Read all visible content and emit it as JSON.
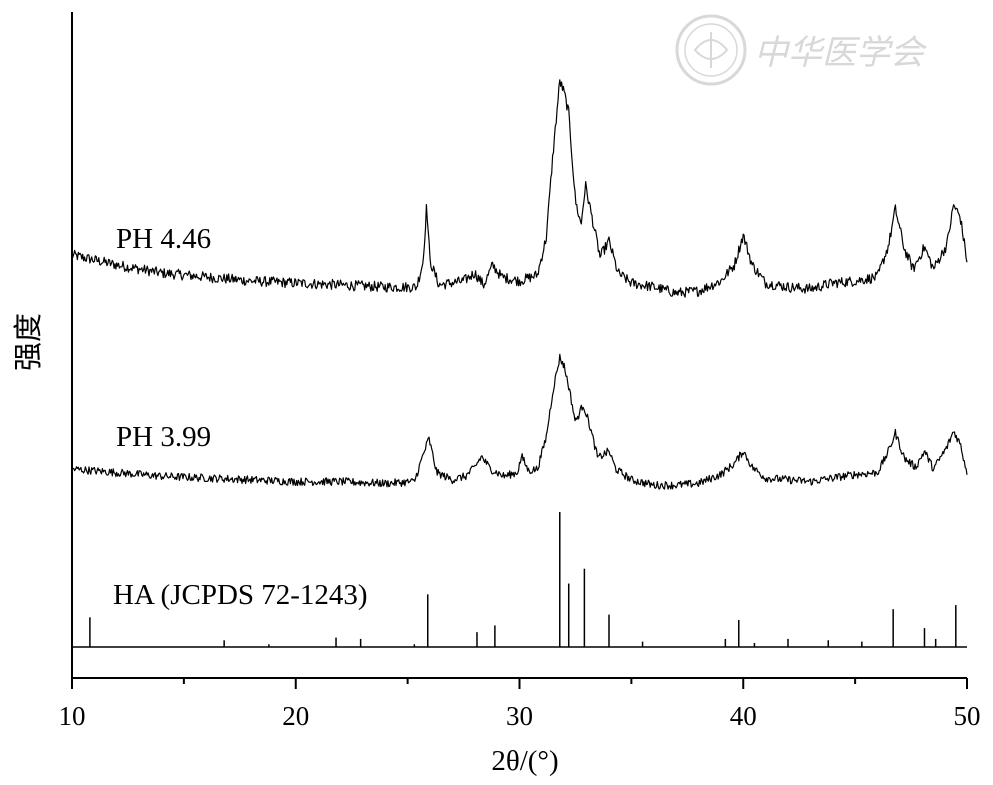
{
  "chart_data": {
    "type": "line",
    "title": "",
    "xlabel": "2θ/(°)",
    "ylabel": "强度",
    "xlim": [
      10,
      50
    ],
    "x_ticks": [
      "10",
      "20",
      "30",
      "40",
      "50"
    ],
    "grid": false,
    "watermark": "中华医学会",
    "series": [
      {
        "name": "PH 4.46",
        "noise_amplitude": 0.13,
        "points": [
          [
            10.0,
            2.25
          ],
          [
            12.0,
            2.0
          ],
          [
            14.0,
            1.8
          ],
          [
            16.0,
            1.7
          ],
          [
            18.0,
            1.6
          ],
          [
            20.0,
            1.55
          ],
          [
            22.0,
            1.5
          ],
          [
            24.0,
            1.45
          ],
          [
            25.4,
            1.45
          ],
          [
            25.7,
            2.1
          ],
          [
            25.85,
            3.5
          ],
          [
            26.0,
            2.1
          ],
          [
            26.4,
            1.5
          ],
          [
            27.5,
            1.6
          ],
          [
            28.0,
            1.8
          ],
          [
            28.4,
            1.5
          ],
          [
            28.8,
            2.0
          ],
          [
            29.2,
            1.7
          ],
          [
            30.0,
            1.6
          ],
          [
            30.8,
            1.75
          ],
          [
            31.2,
            2.7
          ],
          [
            31.5,
            4.8
          ],
          [
            31.8,
            6.6
          ],
          [
            32.0,
            6.3
          ],
          [
            32.2,
            5.8
          ],
          [
            32.5,
            3.6
          ],
          [
            32.75,
            3.0
          ],
          [
            32.95,
            4.0
          ],
          [
            33.2,
            3.3
          ],
          [
            33.6,
            2.2
          ],
          [
            34.0,
            2.6
          ],
          [
            34.4,
            1.8
          ],
          [
            35.0,
            1.55
          ],
          [
            36.0,
            1.45
          ],
          [
            37.0,
            1.3
          ],
          [
            38.0,
            1.35
          ],
          [
            39.0,
            1.6
          ],
          [
            39.6,
            2.0
          ],
          [
            40.0,
            2.75
          ],
          [
            40.4,
            2.0
          ],
          [
            41.0,
            1.55
          ],
          [
            42.0,
            1.45
          ],
          [
            43.0,
            1.4
          ],
          [
            44.0,
            1.55
          ],
          [
            45.0,
            1.6
          ],
          [
            46.0,
            1.7
          ],
          [
            46.5,
            2.5
          ],
          [
            46.8,
            3.4
          ],
          [
            47.2,
            2.4
          ],
          [
            47.6,
            1.9
          ],
          [
            48.1,
            2.45
          ],
          [
            48.5,
            1.9
          ],
          [
            49.1,
            2.5
          ],
          [
            49.4,
            3.5
          ],
          [
            49.7,
            3.2
          ],
          [
            50.0,
            2.1
          ]
        ]
      },
      {
        "name": "PH 3.99",
        "noise_amplitude": 0.11,
        "points": [
          [
            10.0,
            1.0
          ],
          [
            12.0,
            0.9
          ],
          [
            14.0,
            0.8
          ],
          [
            16.0,
            0.75
          ],
          [
            18.0,
            0.7
          ],
          [
            20.0,
            0.65
          ],
          [
            22.0,
            0.65
          ],
          [
            24.0,
            0.6
          ],
          [
            25.3,
            0.65
          ],
          [
            25.7,
            1.4
          ],
          [
            25.95,
            1.85
          ],
          [
            26.3,
            0.9
          ],
          [
            27.0,
            0.7
          ],
          [
            27.6,
            0.8
          ],
          [
            28.0,
            1.05
          ],
          [
            28.3,
            1.35
          ],
          [
            28.7,
            1.0
          ],
          [
            29.3,
            0.8
          ],
          [
            29.9,
            0.9
          ],
          [
            30.1,
            1.35
          ],
          [
            30.4,
            0.95
          ],
          [
            30.8,
            1.0
          ],
          [
            31.2,
            1.9
          ],
          [
            31.5,
            3.2
          ],
          [
            31.8,
            4.1
          ],
          [
            32.0,
            3.85
          ],
          [
            32.2,
            3.3
          ],
          [
            32.5,
            2.3
          ],
          [
            32.85,
            2.8
          ],
          [
            33.1,
            2.3
          ],
          [
            33.5,
            1.3
          ],
          [
            34.0,
            1.5
          ],
          [
            34.3,
            1.0
          ],
          [
            35.0,
            0.7
          ],
          [
            36.0,
            0.55
          ],
          [
            37.0,
            0.55
          ],
          [
            38.0,
            0.6
          ],
          [
            39.0,
            0.85
          ],
          [
            39.6,
            1.15
          ],
          [
            40.0,
            1.5
          ],
          [
            40.4,
            1.05
          ],
          [
            41.0,
            0.75
          ],
          [
            42.0,
            0.7
          ],
          [
            43.0,
            0.65
          ],
          [
            44.0,
            0.75
          ],
          [
            45.0,
            0.85
          ],
          [
            46.0,
            0.9
          ],
          [
            46.5,
            1.5
          ],
          [
            46.8,
            2.0
          ],
          [
            47.2,
            1.3
          ],
          [
            47.7,
            1.05
          ],
          [
            48.1,
            1.5
          ],
          [
            48.5,
            1.0
          ],
          [
            49.1,
            1.6
          ],
          [
            49.4,
            2.05
          ],
          [
            49.7,
            1.7
          ],
          [
            50.0,
            0.9
          ]
        ]
      }
    ],
    "reference": {
      "name": "HA (JCPDS 72-1243)",
      "peaks": [
        [
          10.8,
          0.22
        ],
        [
          16.8,
          0.05
        ],
        [
          18.8,
          0.02
        ],
        [
          21.8,
          0.07
        ],
        [
          22.9,
          0.06
        ],
        [
          25.3,
          0.02
        ],
        [
          25.9,
          0.39
        ],
        [
          28.1,
          0.11
        ],
        [
          28.9,
          0.16
        ],
        [
          31.8,
          1.0
        ],
        [
          32.2,
          0.47
        ],
        [
          32.9,
          0.58
        ],
        [
          34.0,
          0.24
        ],
        [
          35.5,
          0.04
        ],
        [
          39.2,
          0.06
        ],
        [
          39.8,
          0.2
        ],
        [
          40.5,
          0.03
        ],
        [
          42.0,
          0.06
        ],
        [
          43.8,
          0.05
        ],
        [
          45.3,
          0.04
        ],
        [
          46.7,
          0.28
        ],
        [
          48.1,
          0.14
        ],
        [
          48.6,
          0.06
        ],
        [
          49.5,
          0.31
        ]
      ]
    }
  }
}
